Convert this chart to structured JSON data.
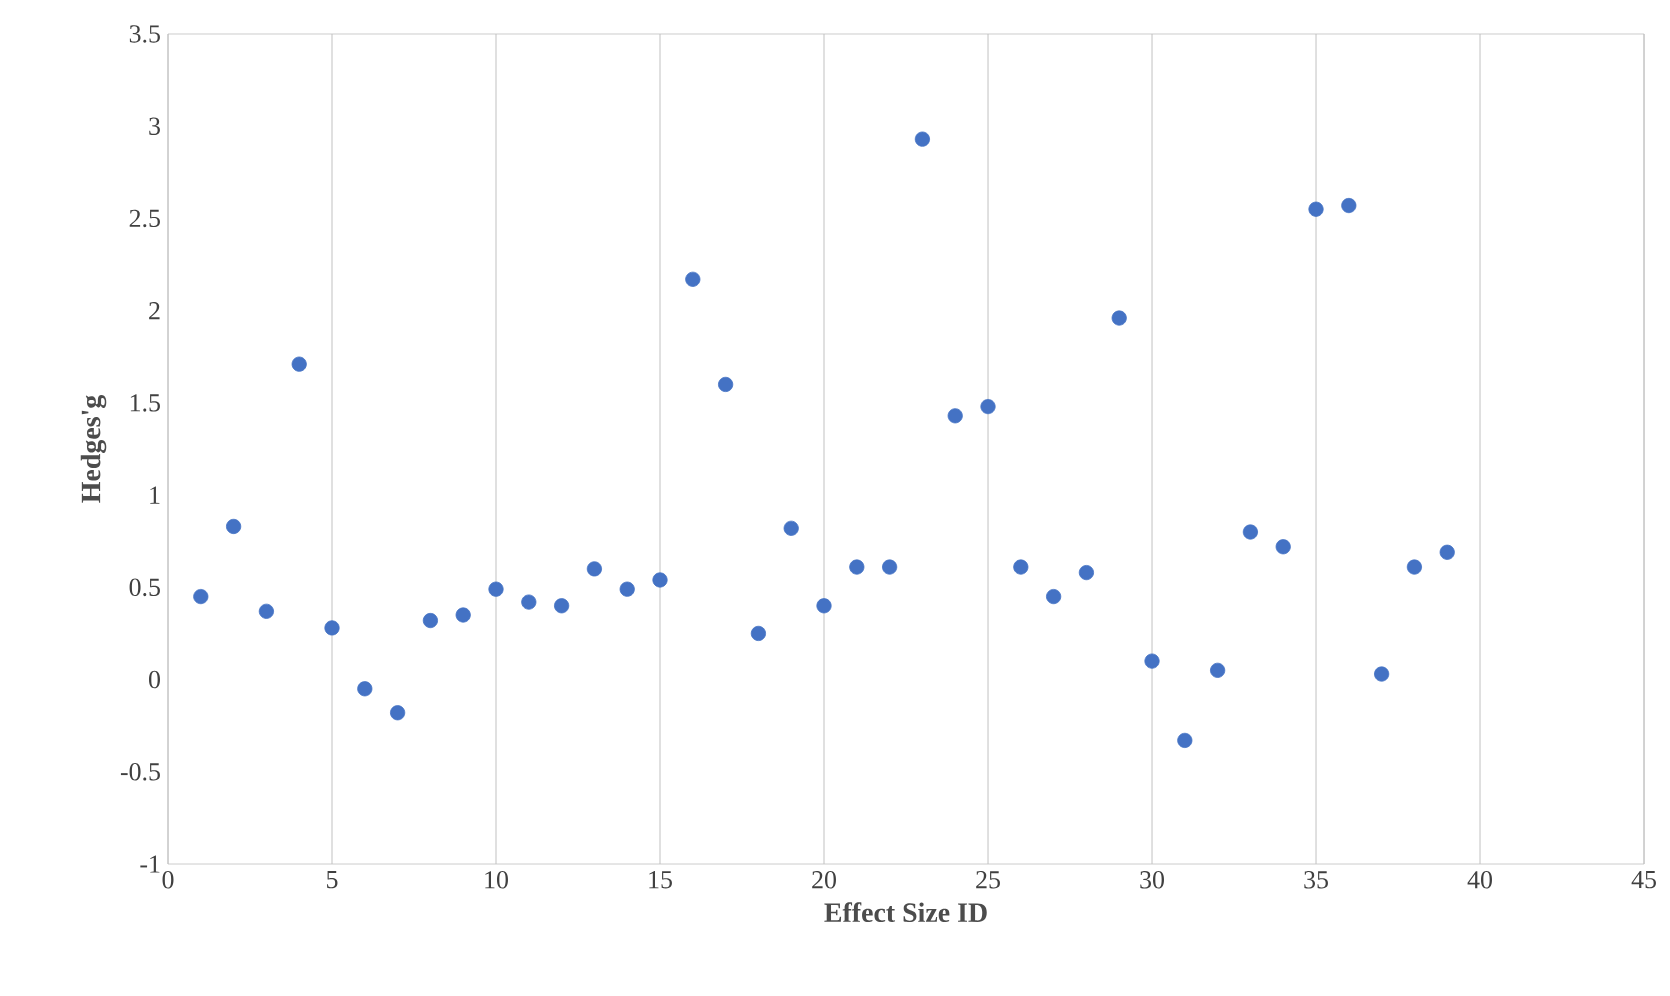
{
  "chart_data": {
    "type": "scatter",
    "xlabel": "Effect Size ID",
    "ylabel": "Hedges'g",
    "x": [
      1,
      2,
      3,
      4,
      5,
      6,
      7,
      8,
      9,
      10,
      11,
      12,
      13,
      14,
      15,
      16,
      17,
      18,
      19,
      20,
      21,
      22,
      23,
      24,
      25,
      26,
      27,
      28,
      29,
      30,
      31,
      32,
      33,
      34,
      35,
      36,
      37,
      38,
      39
    ],
    "values": [
      0.45,
      0.83,
      0.37,
      1.71,
      0.28,
      -0.05,
      -0.18,
      0.32,
      0.35,
      0.49,
      0.42,
      0.4,
      0.6,
      0.49,
      0.54,
      2.17,
      1.6,
      0.25,
      0.82,
      0.4,
      0.61,
      0.61,
      2.93,
      1.43,
      1.48,
      0.61,
      0.45,
      0.58,
      1.96,
      0.1,
      -0.33,
      0.05,
      0.8,
      0.72,
      2.55,
      2.57,
      0.03,
      0.61,
      0.69
    ],
    "color": "#4472c4",
    "marker": "circle",
    "xlim": [
      0,
      45
    ],
    "xticks": [
      0,
      5,
      10,
      15,
      20,
      25,
      30,
      35,
      40,
      45
    ],
    "ylim": [
      -1,
      3.5
    ],
    "yticks": [
      -1,
      -0.5,
      0,
      0.5,
      1,
      1.5,
      2,
      2.5,
      3,
      3.5
    ],
    "grid": "x"
  }
}
